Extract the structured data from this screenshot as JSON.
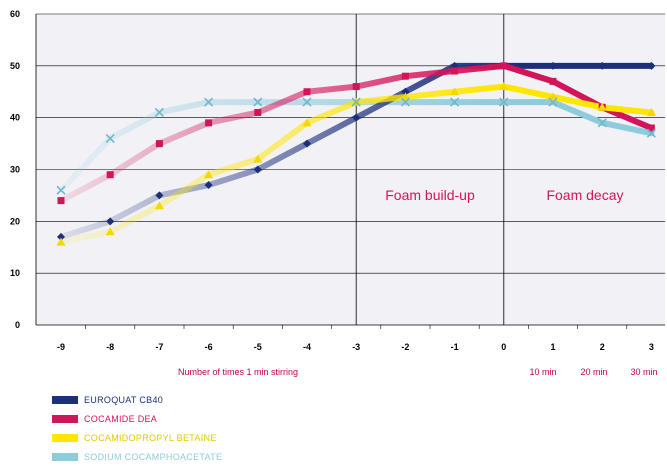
{
  "chart_data": {
    "type": "line",
    "categories": [
      "-9",
      "-8",
      "-7",
      "-6",
      "-5",
      "-4",
      "-3",
      "-2",
      "-1",
      "0",
      "1",
      "2",
      "3"
    ],
    "ylim": [
      0,
      60
    ],
    "yticks": [
      "0",
      "10",
      "20",
      "30",
      "40",
      "50",
      "60"
    ],
    "xlabel": "Number of times 1 min stirring",
    "decay_labels": [
      "10 min",
      "20 min",
      "30 min"
    ],
    "annotations": [
      "Foam build-up",
      "Foam decay"
    ],
    "grid": true,
    "legend_position": "bottom-left",
    "series": [
      {
        "name": "EUROQUAT CB40",
        "color": "#1e2f7a",
        "marker": "diamond",
        "values": [
          17,
          20,
          25,
          27,
          30,
          35,
          40,
          45,
          50,
          50,
          50,
          50,
          50
        ]
      },
      {
        "name": "COCAMIDE DEA",
        "color": "#d4145a",
        "marker": "square",
        "values": [
          24,
          29,
          35,
          39,
          41,
          45,
          46,
          48,
          49,
          50,
          47,
          42,
          38
        ]
      },
      {
        "name": "COCAMIDOPROPYL BETAINE",
        "color": "#ffe600",
        "marker": "triangle",
        "values": [
          16,
          18,
          23,
          29,
          32,
          39,
          43,
          44,
          45,
          46,
          44,
          42,
          41
        ]
      },
      {
        "name": "SODIUM COCAMPHOACETATE",
        "color": "#8ecbdb",
        "marker": "x",
        "values": [
          26,
          36,
          41,
          43,
          43,
          43,
          43,
          43,
          43,
          43,
          43,
          39,
          37
        ]
      }
    ]
  }
}
